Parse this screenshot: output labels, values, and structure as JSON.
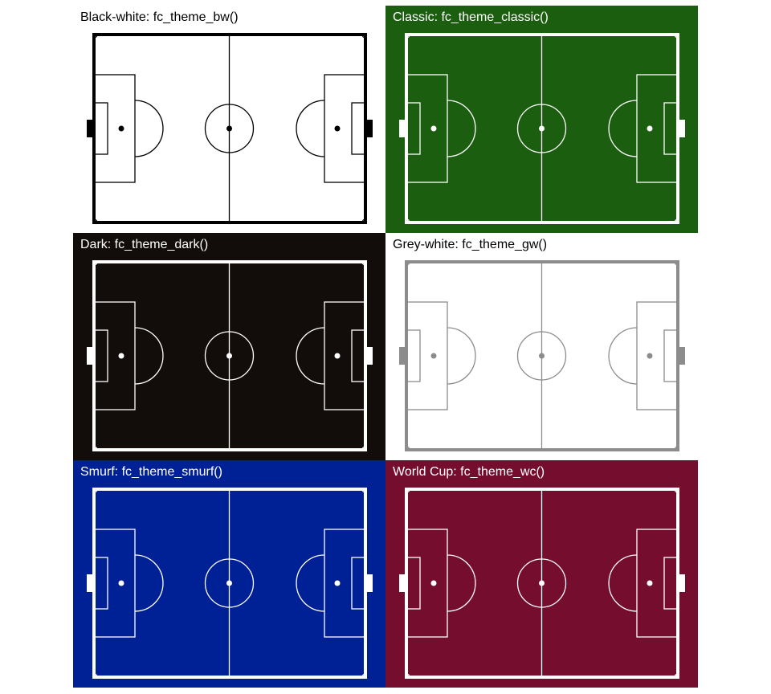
{
  "figure": {
    "panels": [
      {
        "title": "Black-white: fc_theme_bw()",
        "fill": "#ffffff",
        "line": "#000000",
        "text": "#000000"
      },
      {
        "title": "Classic: fc_theme_classic()",
        "fill": "#1b5e0f",
        "line": "#ffffff",
        "text": "#ffffff"
      },
      {
        "title": "Dark: fc_theme_dark()",
        "fill": "#120d0a",
        "line": "#ffffff",
        "text": "#ffffff"
      },
      {
        "title": "Grey-white: fc_theme_gw()",
        "fill": "#ffffff",
        "line": "#8c8c8c",
        "text": "#000000"
      },
      {
        "title": "Smurf: fc_theme_smurf()",
        "fill": "#002095",
        "line": "#ffffff",
        "text": "#ffffff"
      },
      {
        "title": "World Cup: fc_theme_wc()",
        "fill": "#750d2e",
        "line": "#ffffff",
        "text": "#ffffff"
      }
    ]
  }
}
